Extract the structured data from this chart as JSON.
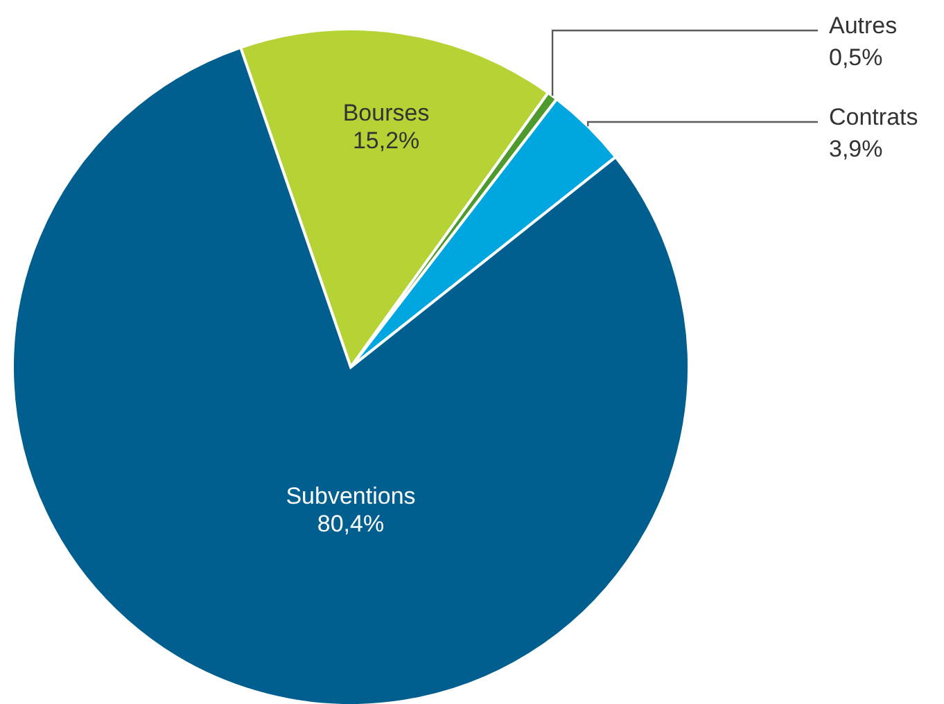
{
  "chart_data": {
    "type": "pie",
    "categories": [
      "Bourses",
      "Autres",
      "Contrats",
      "Subventions"
    ],
    "values": [
      15.2,
      0.5,
      3.9,
      80.4
    ],
    "colors": [
      "#b5d334",
      "#4f9a2f",
      "#00a6e0",
      "#005f8f"
    ],
    "value_labels": [
      "15,2%",
      "0,5%",
      "3,9%",
      "80,4%"
    ]
  }
}
